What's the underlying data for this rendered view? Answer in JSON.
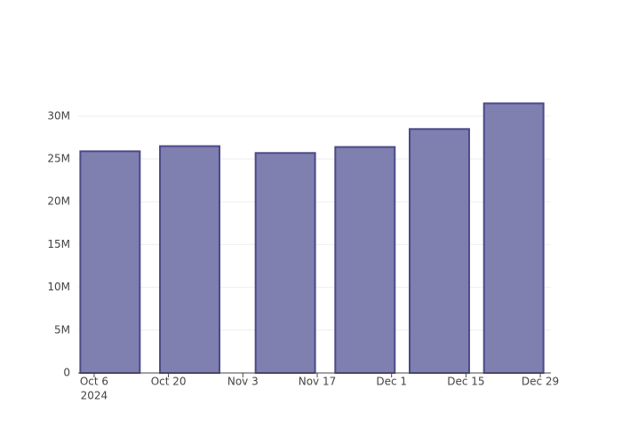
{
  "chart_data": {
    "type": "bar",
    "x": [
      "2024-10-09",
      "2024-10-24",
      "2024-11-11",
      "2024-11-26",
      "2024-12-10",
      "2024-12-24"
    ],
    "values": [
      25900000,
      26500000,
      25700000,
      26400000,
      28500000,
      31500000
    ],
    "color": "#7f7fb0",
    "edge_color": "#4b4a8a",
    "xlim": [
      "2024-10-03",
      "2024-12-31"
    ],
    "xticks": [
      {
        "value": "2024-10-06",
        "label": "Oct 6"
      },
      {
        "value": "2024-10-20",
        "label": "Oct 20"
      },
      {
        "value": "2024-11-03",
        "label": "Nov 3"
      },
      {
        "value": "2024-11-17",
        "label": "Nov 17"
      },
      {
        "value": "2024-12-01",
        "label": "Dec 1"
      },
      {
        "value": "2024-12-15",
        "label": "Dec 15"
      },
      {
        "value": "2024-12-29",
        "label": "Dec 29"
      }
    ],
    "x_year_label": "2024",
    "ylim": [
      0,
      33200000
    ],
    "yticks": [
      {
        "value": 0,
        "label": "0"
      },
      {
        "value": 5000000,
        "label": "5M"
      },
      {
        "value": 10000000,
        "label": "10M"
      },
      {
        "value": 15000000,
        "label": "15M"
      },
      {
        "value": 20000000,
        "label": "20M"
      },
      {
        "value": 25000000,
        "label": "25M"
      },
      {
        "value": 30000000,
        "label": "30M"
      }
    ],
    "grid": true
  }
}
